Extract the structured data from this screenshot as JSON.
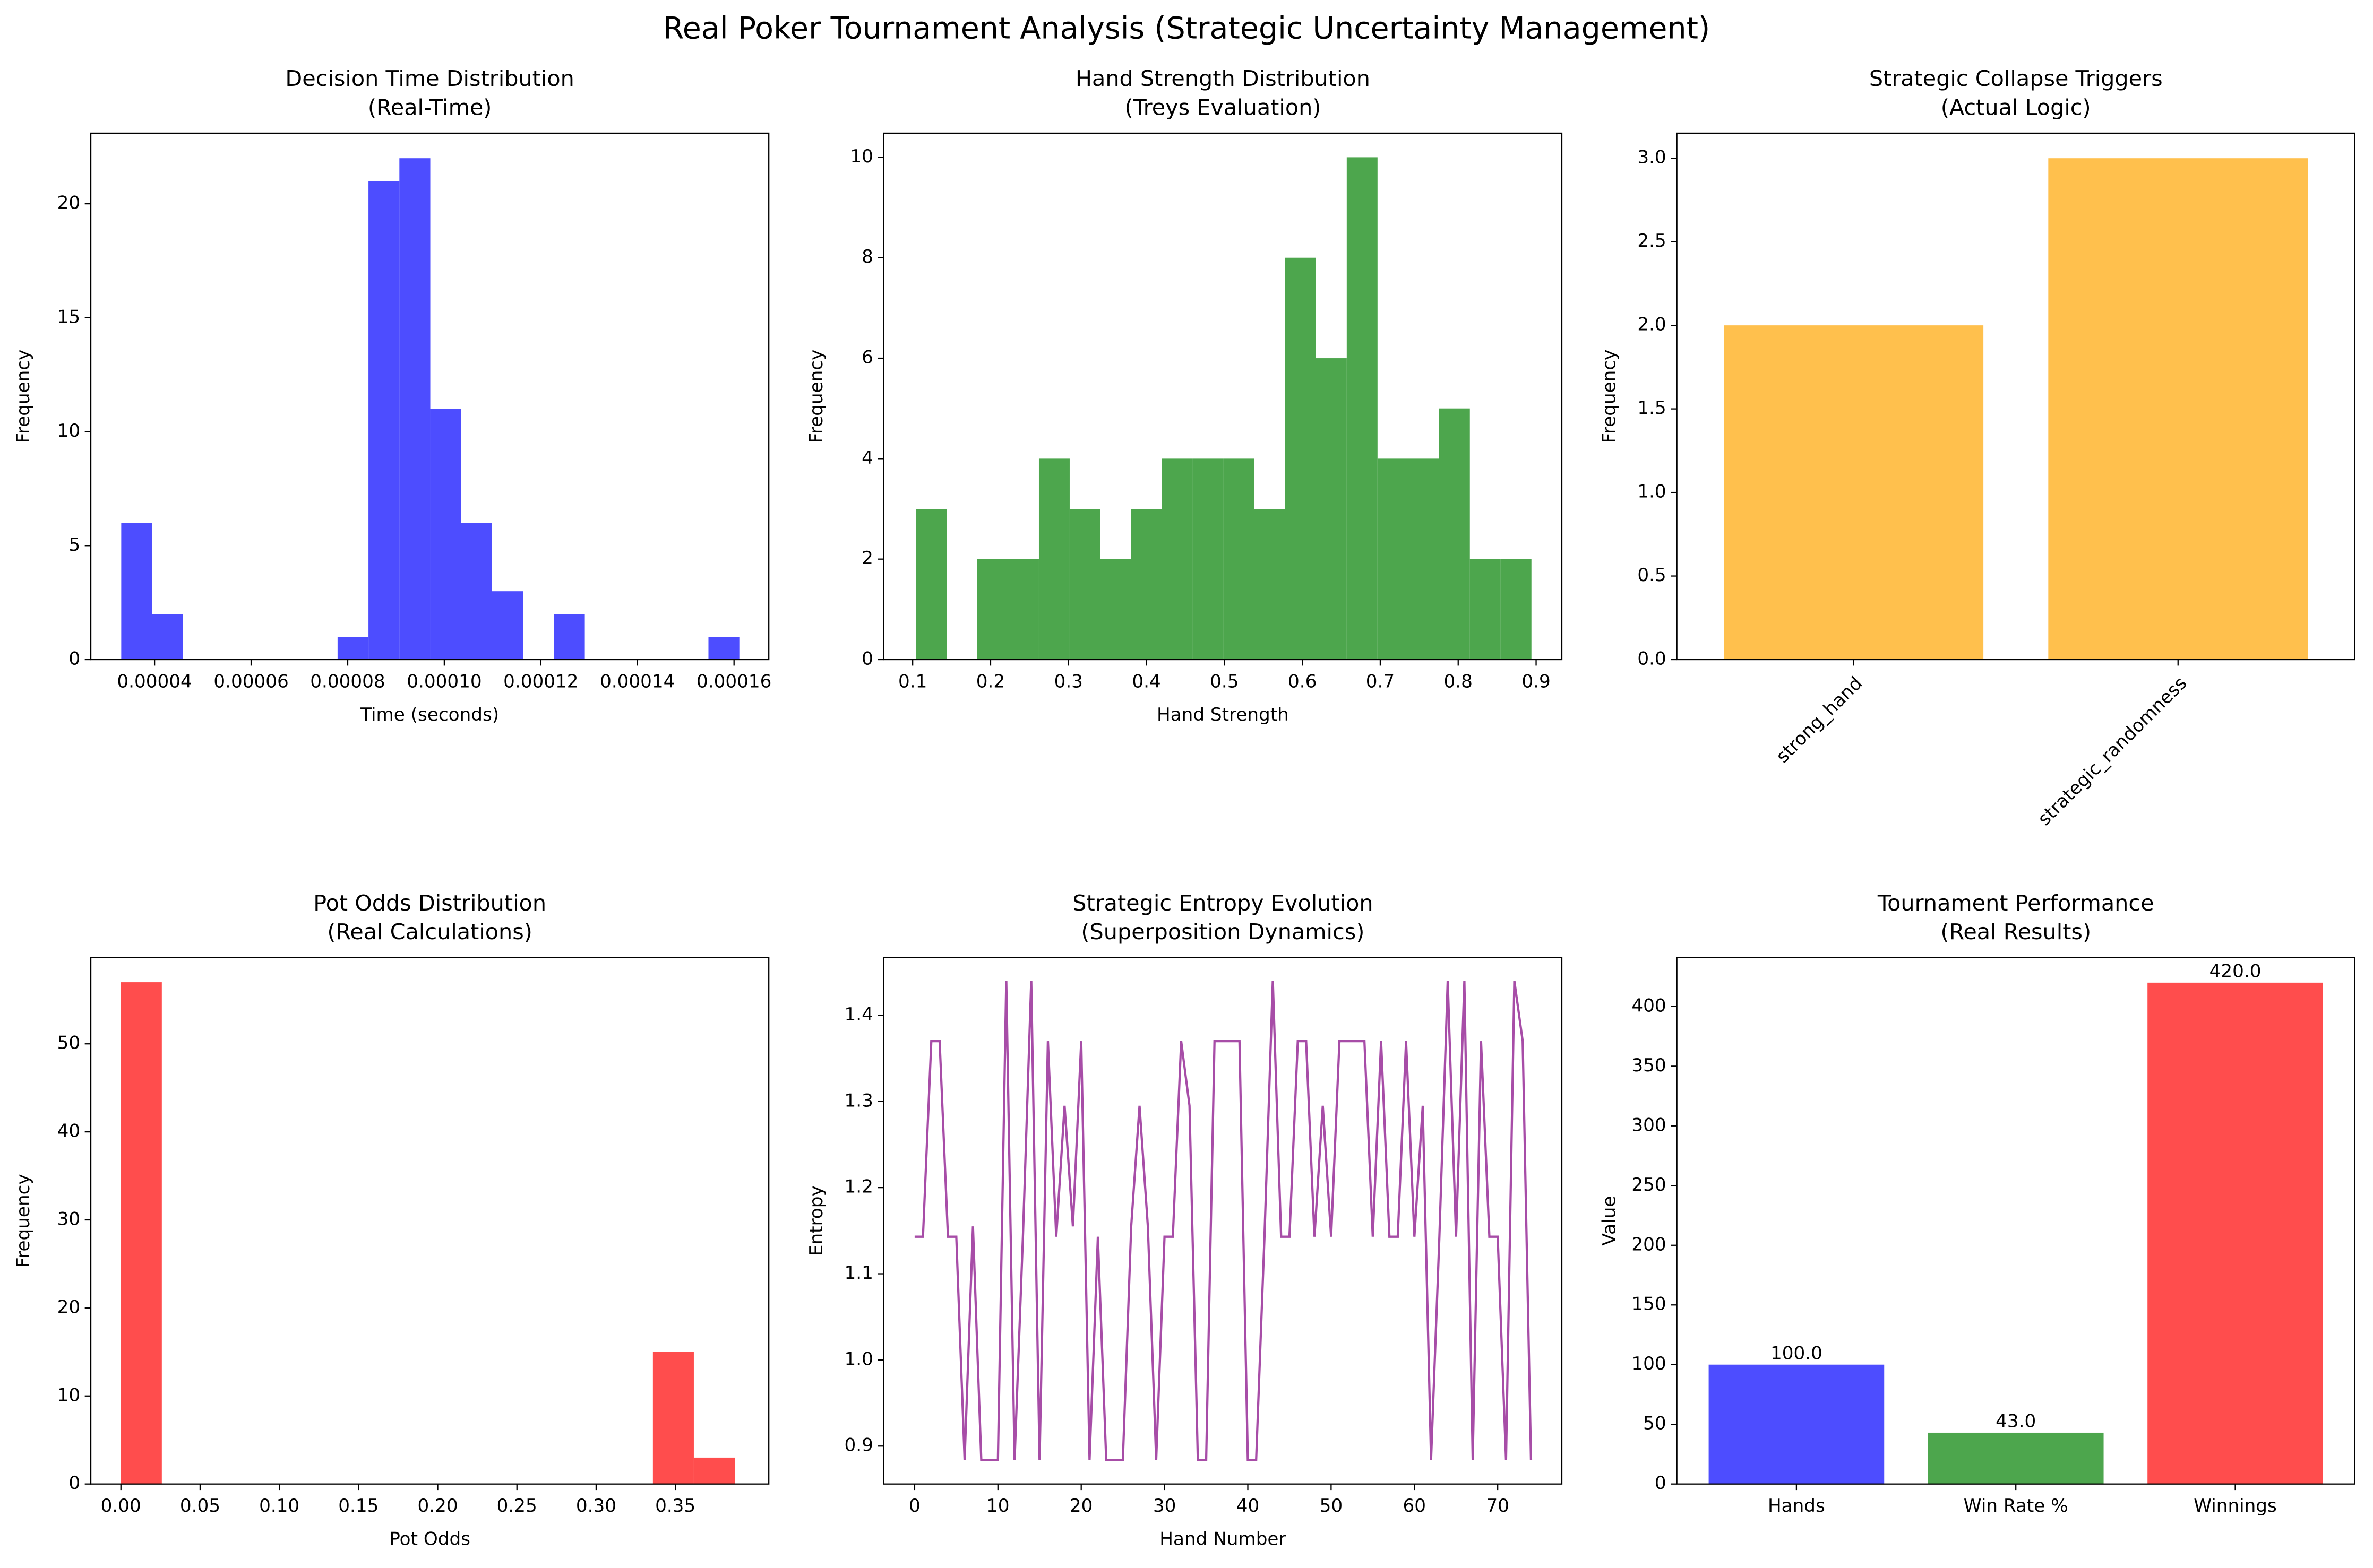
{
  "title": "Real Poker Tournament Analysis (Strategic Uncertainty Management)",
  "chart_data": [
    {
      "type": "histogram",
      "title": "Decision Time Distribution",
      "subtitle": "(Real-Time)",
      "xlabel": "Time (seconds)",
      "ylabel": "Frequency",
      "color": "#4d4dff",
      "bins": [
        3.31e-05,
        3.95e-05,
        4.59e-05,
        5.23e-05,
        5.87e-05,
        6.51e-05,
        7.15e-05,
        7.79e-05,
        8.43e-05,
        9.07e-05,
        9.71e-05,
        0.0001035,
        0.0001099,
        0.0001163,
        0.0001227,
        0.0001291,
        0.0001355,
        0.0001419,
        0.0001483,
        0.0001547,
        0.0001611
      ],
      "values": [
        6,
        2,
        0,
        0,
        0,
        0,
        0,
        1,
        21,
        22,
        11,
        6,
        3,
        0,
        2,
        0,
        0,
        0,
        0,
        1
      ],
      "xlim": [
        2.68e-05,
        0.0001672
      ],
      "xticks": [
        4e-05,
        6e-05,
        8e-05,
        {
          "value": 0.0001,
          "label": "0.00010"
        },
        0.00012,
        0.00014,
        0.00016
      ],
      "ylim": [
        0,
        23.1
      ],
      "yticks": [
        0,
        5,
        10,
        15,
        20
      ]
    },
    {
      "type": "histogram",
      "title": "Hand Strength Distribution",
      "subtitle": "(Treys Evaluation)",
      "xlabel": "Hand Strength",
      "ylabel": "Frequency",
      "color": "#4da64d",
      "bins": [
        0.104,
        0.1435,
        0.183,
        0.2225,
        0.262,
        0.3015,
        0.341,
        0.3805,
        0.42,
        0.4595,
        0.499,
        0.5385,
        0.578,
        0.6175,
        0.657,
        0.6965,
        0.736,
        0.7755,
        0.815,
        0.8545,
        0.894
      ],
      "values": [
        3,
        0,
        2,
        2,
        4,
        3,
        2,
        3,
        4,
        4,
        4,
        3,
        8,
        6,
        10,
        4,
        4,
        5,
        2,
        2
      ],
      "xlim": [
        0.063,
        0.933
      ],
      "xticks": [
        0.1,
        0.2,
        0.3,
        0.4,
        0.5,
        0.6,
        0.7,
        0.8,
        0.9
      ],
      "ylim": [
        0,
        10.48
      ],
      "yticks": [
        0,
        2,
        4,
        6,
        8,
        10
      ]
    },
    {
      "type": "bar",
      "title": "Strategic Collapse Triggers",
      "subtitle": "(Actual Logic)",
      "ylabel": "Frequency",
      "color": "#ffc04d",
      "xtick_rotation": 45,
      "categories": [
        "strong_hand",
        "strategic_randomness"
      ],
      "values": [
        2,
        3
      ],
      "ylim": [
        0,
        3.15
      ],
      "yticks": [
        {
          "value": 0,
          "label": "0.0"
        },
        0.5,
        {
          "value": 1,
          "label": "1.0"
        },
        1.5,
        {
          "value": 2,
          "label": "2.0"
        },
        2.5,
        {
          "value": 3,
          "label": "3.0"
        }
      ]
    },
    {
      "type": "histogram",
      "title": "Pot Odds Distribution",
      "subtitle": "(Real Calculations)",
      "xlabel": "Pot Odds",
      "ylabel": "Frequency",
      "color": "#ff4d4d",
      "bins": [
        0,
        0.025833,
        0.051667,
        0.0775,
        0.103333,
        0.129167,
        0.155,
        0.180833,
        0.206667,
        0.2325,
        0.258333,
        0.284167,
        0.31,
        0.335833,
        0.361667,
        0.3875
      ],
      "values": [
        57,
        0,
        0,
        0,
        0,
        0,
        0,
        0,
        0,
        0,
        0,
        0,
        0,
        15,
        3
      ],
      "xlim": [
        -0.019,
        0.409
      ],
      "xticks": [
        {
          "value": 0,
          "label": "0.00"
        },
        {
          "value": 0.05,
          "label": "0.05"
        },
        {
          "value": 0.1,
          "label": "0.10"
        },
        {
          "value": 0.15,
          "label": "0.15"
        },
        {
          "value": 0.2,
          "label": "0.20"
        },
        {
          "value": 0.25,
          "label": "0.25"
        },
        {
          "value": 0.3,
          "label": "0.30"
        },
        {
          "value": 0.35,
          "label": "0.35"
        }
      ],
      "ylim": [
        0,
        59.8
      ],
      "yticks": [
        0,
        10,
        20,
        30,
        40,
        50
      ]
    },
    {
      "type": "line",
      "title": "Strategic Entropy Evolution",
      "subtitle": "(Superposition Dynamics)",
      "xlabel": "Hand Number",
      "ylabel": "Entropy",
      "color": "#a74da7",
      "x": [
        0,
        1,
        2,
        3,
        4,
        5,
        6,
        7,
        8,
        9,
        10,
        11,
        12,
        13,
        14,
        15,
        16,
        17,
        18,
        19,
        20,
        21,
        22,
        23,
        24,
        25,
        26,
        27,
        28,
        29,
        30,
        31,
        32,
        33,
        34,
        35,
        36,
        37,
        38,
        39,
        40,
        41,
        42,
        43,
        44,
        45,
        46,
        47,
        48,
        49,
        50,
        51,
        52,
        53,
        54,
        55,
        56,
        57,
        58,
        59,
        60,
        61,
        62,
        63,
        64,
        65,
        66,
        67,
        68,
        69,
        70,
        71,
        72,
        73,
        74
      ],
      "values": [
        1.143,
        1.143,
        1.37,
        1.37,
        1.143,
        1.143,
        0.884,
        1.155,
        0.884,
        0.884,
        0.884,
        1.44,
        0.884,
        1.143,
        1.44,
        0.884,
        1.37,
        1.143,
        1.295,
        1.155,
        1.37,
        0.884,
        1.143,
        0.884,
        0.884,
        0.884,
        1.155,
        1.295,
        1.155,
        0.884,
        1.143,
        1.143,
        1.37,
        1.295,
        0.884,
        0.884,
        1.37,
        1.37,
        1.37,
        1.37,
        0.884,
        0.884,
        1.143,
        1.44,
        1.143,
        1.143,
        1.37,
        1.37,
        1.143,
        1.295,
        1.143,
        1.37,
        1.37,
        1.37,
        1.37,
        1.143,
        1.37,
        1.143,
        1.143,
        1.37,
        1.143,
        1.295,
        0.884,
        1.143,
        1.44,
        1.143,
        1.44,
        0.884,
        1.37,
        1.143,
        1.143,
        0.884,
        1.44,
        1.37,
        0.884
      ],
      "xlim": [
        -3.7,
        77.7
      ],
      "xticks": [
        0,
        10,
        20,
        30,
        40,
        50,
        60,
        70
      ],
      "ylim": [
        0.856,
        1.467
      ],
      "yticks": [
        0.9,
        {
          "value": 1,
          "label": "1.0"
        },
        1.1,
        1.2,
        1.3,
        1.4
      ]
    },
    {
      "type": "bar",
      "title": "Tournament Performance",
      "subtitle": "(Real Results)",
      "ylabel": "Value",
      "colors": [
        "#4d4dff",
        "#4da64d",
        "#ff4d4d"
      ],
      "categories": [
        "Hands",
        "Win Rate %",
        "Winnings"
      ],
      "values": [
        100,
        43,
        420
      ],
      "value_labels": [
        "100.0",
        "43.0",
        "420.0"
      ],
      "ylim": [
        0,
        441
      ],
      "yticks": [
        0,
        50,
        100,
        150,
        200,
        250,
        300,
        350,
        400
      ]
    }
  ]
}
